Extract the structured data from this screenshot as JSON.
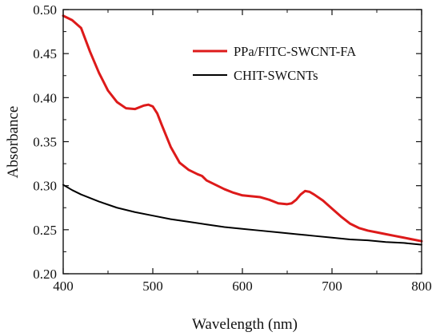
{
  "chart_data": {
    "type": "line",
    "xlabel": "Wavelength (nm)",
    "ylabel": "Absorbance",
    "xlim": [
      400,
      800
    ],
    "ylim": [
      0.2,
      0.5
    ],
    "x_ticks": [
      400,
      500,
      600,
      700,
      800
    ],
    "y_ticks": [
      0.2,
      0.25,
      0.3,
      0.35,
      0.4,
      0.45,
      0.5
    ],
    "x_tick_labels": [
      "400",
      "500",
      "600",
      "700",
      "800"
    ],
    "y_tick_labels": [
      "0.20",
      "0.25",
      "0.30",
      "0.35",
      "0.40",
      "0.45",
      "0.50"
    ],
    "grid": false,
    "legend_position": "top-right",
    "series": [
      {
        "name": "PPa/FITC-SWCNT-FA",
        "color": "#dd1a1a",
        "x": [
          400,
          410,
          420,
          430,
          440,
          450,
          460,
          470,
          480,
          490,
          495,
          500,
          505,
          510,
          520,
          530,
          540,
          550,
          555,
          560,
          570,
          580,
          590,
          600,
          610,
          620,
          630,
          640,
          650,
          655,
          660,
          665,
          670,
          675,
          680,
          690,
          700,
          710,
          720,
          730,
          740,
          750,
          760,
          770,
          780,
          790,
          800
        ],
        "y": [
          0.493,
          0.488,
          0.479,
          0.452,
          0.428,
          0.408,
          0.395,
          0.388,
          0.387,
          0.391,
          0.392,
          0.39,
          0.382,
          0.369,
          0.344,
          0.326,
          0.318,
          0.313,
          0.311,
          0.306,
          0.301,
          0.296,
          0.292,
          0.289,
          0.288,
          0.287,
          0.284,
          0.28,
          0.279,
          0.28,
          0.284,
          0.29,
          0.294,
          0.293,
          0.29,
          0.283,
          0.274,
          0.265,
          0.257,
          0.252,
          0.249,
          0.247,
          0.245,
          0.243,
          0.241,
          0.239,
          0.237
        ]
      },
      {
        "name": "CHIT-SWCNTs",
        "color": "#000000",
        "x": [
          400,
          410,
          420,
          440,
          460,
          480,
          500,
          520,
          540,
          560,
          580,
          600,
          620,
          640,
          660,
          680,
          700,
          720,
          740,
          760,
          780,
          800
        ],
        "y": [
          0.301,
          0.295,
          0.29,
          0.282,
          0.275,
          0.27,
          0.266,
          0.262,
          0.259,
          0.256,
          0.253,
          0.251,
          0.249,
          0.247,
          0.245,
          0.243,
          0.241,
          0.239,
          0.238,
          0.236,
          0.235,
          0.233
        ]
      }
    ]
  }
}
